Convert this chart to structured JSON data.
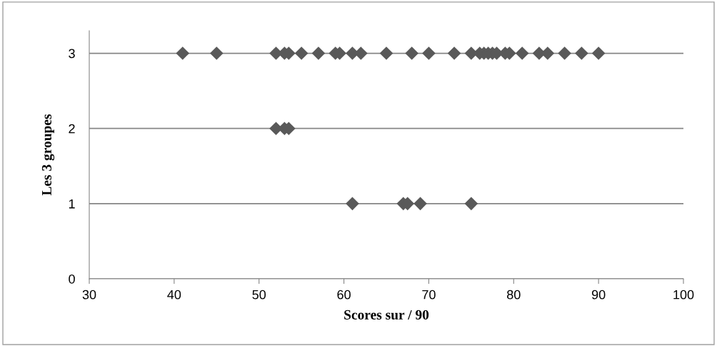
{
  "chart_data": {
    "type": "scatter",
    "xlabel": "Scores sur / 90",
    "ylabel": "Les 3 groupes",
    "xlim": [
      30,
      100
    ],
    "xticks": [
      30,
      40,
      50,
      60,
      70,
      80,
      90,
      100
    ],
    "ylim": [
      0,
      3.3
    ],
    "yticks": [
      0,
      1,
      2,
      3
    ],
    "grid": "y",
    "marker": "diamond",
    "series": [
      {
        "color": "#595959",
        "x": [
          41,
          45,
          52,
          53,
          53.5,
          55,
          57,
          59,
          59.5,
          61,
          62,
          65,
          68,
          70,
          73,
          75,
          76,
          76.5,
          77,
          77.5,
          78,
          79,
          79.5,
          81,
          83,
          84,
          86,
          88,
          90
        ],
        "values": [
          3,
          3,
          3,
          3,
          3,
          3,
          3,
          3,
          3,
          3,
          3,
          3,
          3,
          3,
          3,
          3,
          3,
          3,
          3,
          3,
          3,
          3,
          3,
          3,
          3,
          3,
          3,
          3,
          3
        ]
      },
      {
        "color": "#595959",
        "x": [
          52,
          53,
          53.5
        ],
        "values": [
          2,
          2,
          2
        ]
      },
      {
        "color": "#595959",
        "x": [
          61,
          67,
          67.5,
          69,
          75
        ],
        "values": [
          1,
          1,
          1,
          1,
          1
        ]
      }
    ]
  }
}
